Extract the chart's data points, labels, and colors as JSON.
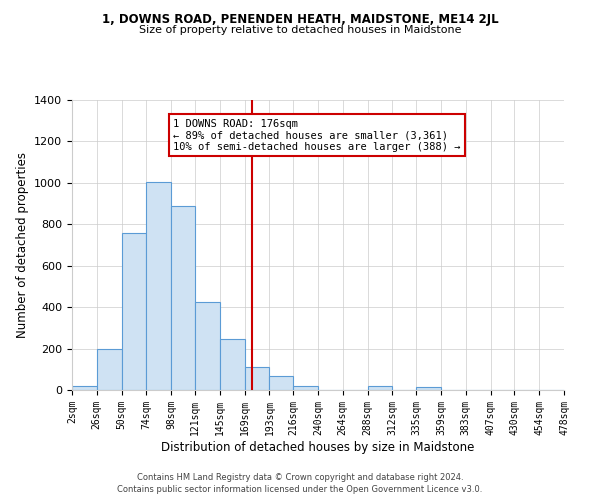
{
  "title1": "1, DOWNS ROAD, PENENDEN HEATH, MAIDSTONE, ME14 2JL",
  "title2": "Size of property relative to detached houses in Maidstone",
  "xlabel": "Distribution of detached houses by size in Maidstone",
  "ylabel": "Number of detached properties",
  "bar_edges": [
    2,
    26,
    50,
    74,
    98,
    121,
    145,
    169,
    193,
    216,
    240,
    264,
    288,
    312,
    335,
    359,
    383,
    407,
    430,
    454,
    478
  ],
  "bar_heights": [
    20,
    200,
    760,
    1005,
    890,
    425,
    245,
    110,
    70,
    20,
    0,
    0,
    20,
    0,
    15,
    0,
    0,
    0,
    0,
    0
  ],
  "bar_color": "#cfe2f3",
  "bar_edge_color": "#5b9bd5",
  "vline_x": 176,
  "vline_color": "#cc0000",
  "ylim": [
    0,
    1400
  ],
  "yticks": [
    0,
    200,
    400,
    600,
    800,
    1000,
    1200,
    1400
  ],
  "xtick_labels": [
    "2sqm",
    "26sqm",
    "50sqm",
    "74sqm",
    "98sqm",
    "121sqm",
    "145sqm",
    "169sqm",
    "193sqm",
    "216sqm",
    "240sqm",
    "264sqm",
    "288sqm",
    "312sqm",
    "335sqm",
    "359sqm",
    "383sqm",
    "407sqm",
    "430sqm",
    "454sqm",
    "478sqm"
  ],
  "annotation_title": "1 DOWNS ROAD: 176sqm",
  "annotation_line1": "← 89% of detached houses are smaller (3,361)",
  "annotation_line2": "10% of semi-detached houses are larger (388) →",
  "annotation_box_color": "#ffffff",
  "annotation_box_edge": "#cc0000",
  "footer1": "Contains HM Land Registry data © Crown copyright and database right 2024.",
  "footer2": "Contains public sector information licensed under the Open Government Licence v3.0.",
  "bg_color": "#ffffff",
  "grid_color": "#cccccc"
}
